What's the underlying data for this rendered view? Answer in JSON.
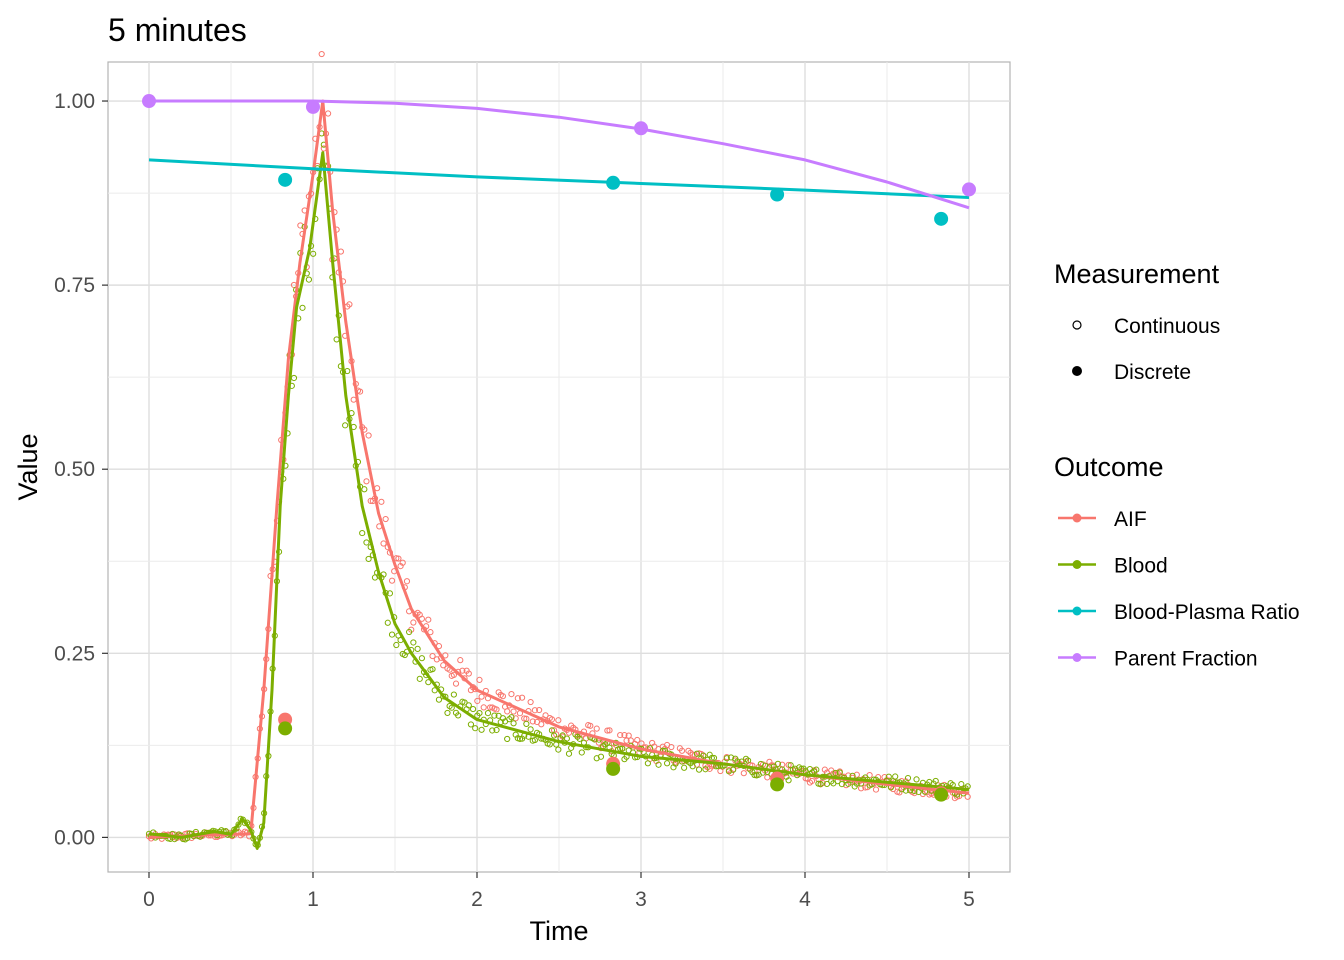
{
  "chart_data": {
    "type": "line",
    "title": "5 minutes",
    "xlabel": "Time",
    "ylabel": "Value",
    "xlim": [
      -0.25,
      5.25
    ],
    "ylim": [
      -0.047,
      1.053
    ],
    "x_ticks": [
      0,
      1,
      2,
      3,
      4,
      5
    ],
    "x_tick_labels": [
      "0",
      "1",
      "2",
      "3",
      "4",
      "5"
    ],
    "y_ticks": [
      0,
      0.25,
      0.5,
      0.75,
      1.0
    ],
    "y_tick_labels": [
      "0.00",
      "0.25",
      "0.50",
      "0.75",
      "1.00"
    ],
    "grid": true,
    "legend_position": "right",
    "legends": {
      "measurement": {
        "title": "Measurement",
        "items": [
          {
            "label": "Continuous",
            "shape": "open-circle"
          },
          {
            "label": "Discrete",
            "shape": "filled-circle"
          }
        ]
      },
      "outcome": {
        "title": "Outcome",
        "items": [
          {
            "label": "AIF",
            "color": "#F8766D"
          },
          {
            "label": "Blood",
            "color": "#7CAE00"
          },
          {
            "label": "Blood-Plasma Ratio",
            "color": "#00BFC4"
          },
          {
            "label": "Parent Fraction",
            "color": "#C77CFF"
          }
        ]
      }
    },
    "series": [
      {
        "name": "AIF",
        "color": "#F8766D",
        "fit": [
          [
            0,
            0
          ],
          [
            0.3,
            0.003
          ],
          [
            0.5,
            0.004
          ],
          [
            0.62,
            0.005
          ],
          [
            0.7,
            0.2
          ],
          [
            0.78,
            0.45
          ],
          [
            0.85,
            0.65
          ],
          [
            0.92,
            0.78
          ],
          [
            1.0,
            0.9
          ],
          [
            1.06,
            1.0
          ],
          [
            1.12,
            0.85
          ],
          [
            1.2,
            0.7
          ],
          [
            1.3,
            0.55
          ],
          [
            1.4,
            0.44
          ],
          [
            1.5,
            0.37
          ],
          [
            1.6,
            0.31
          ],
          [
            1.8,
            0.24
          ],
          [
            2.0,
            0.2
          ],
          [
            2.5,
            0.15
          ],
          [
            3.0,
            0.12
          ],
          [
            3.5,
            0.1
          ],
          [
            4.0,
            0.085
          ],
          [
            4.5,
            0.072
          ],
          [
            5.0,
            0.06
          ]
        ],
        "discrete": [
          [
            0.83,
            0.16
          ],
          [
            2.83,
            0.1
          ],
          [
            3.83,
            0.08
          ],
          [
            4.83,
            0.06
          ]
        ]
      },
      {
        "name": "Blood",
        "color": "#7CAE00",
        "fit": [
          [
            0,
            0.005
          ],
          [
            0.2,
            0.0
          ],
          [
            0.4,
            0.008
          ],
          [
            0.5,
            0.004
          ],
          [
            0.57,
            0.025
          ],
          [
            0.62,
            0.01
          ],
          [
            0.66,
            -0.015
          ],
          [
            0.7,
            0.02
          ],
          [
            0.75,
            0.2
          ],
          [
            0.8,
            0.45
          ],
          [
            0.85,
            0.6
          ],
          [
            0.9,
            0.72
          ],
          [
            0.98,
            0.8
          ],
          [
            1.06,
            0.93
          ],
          [
            1.12,
            0.78
          ],
          [
            1.2,
            0.6
          ],
          [
            1.3,
            0.45
          ],
          [
            1.4,
            0.36
          ],
          [
            1.5,
            0.29
          ],
          [
            1.6,
            0.25
          ],
          [
            1.8,
            0.19
          ],
          [
            2.0,
            0.16
          ],
          [
            2.5,
            0.13
          ],
          [
            3.0,
            0.11
          ],
          [
            3.5,
            0.1
          ],
          [
            4.0,
            0.085
          ],
          [
            4.5,
            0.075
          ],
          [
            5.0,
            0.065
          ]
        ],
        "discrete": [
          [
            0.83,
            0.148
          ],
          [
            2.83,
            0.093
          ],
          [
            3.83,
            0.072
          ],
          [
            4.83,
            0.058
          ]
        ]
      },
      {
        "name": "Blood-Plasma Ratio",
        "color": "#00BFC4",
        "fit": [
          [
            0,
            0.92
          ],
          [
            1,
            0.908
          ],
          [
            2,
            0.897
          ],
          [
            3,
            0.888
          ],
          [
            4,
            0.879
          ],
          [
            5,
            0.869
          ]
        ],
        "discrete": [
          [
            0.83,
            0.893
          ],
          [
            2.83,
            0.889
          ],
          [
            3.83,
            0.873
          ],
          [
            4.83,
            0.84
          ]
        ]
      },
      {
        "name": "Parent Fraction",
        "color": "#C77CFF",
        "fit": [
          [
            0,
            1.0
          ],
          [
            1,
            1.0
          ],
          [
            1.5,
            0.997
          ],
          [
            2,
            0.99
          ],
          [
            2.5,
            0.978
          ],
          [
            3,
            0.962
          ],
          [
            3.5,
            0.942
          ],
          [
            4,
            0.92
          ],
          [
            4.5,
            0.89
          ],
          [
            5,
            0.855
          ]
        ],
        "discrete": [
          [
            0,
            1.0
          ],
          [
            1,
            0.992
          ],
          [
            3,
            0.963
          ],
          [
            5,
            0.88
          ]
        ]
      }
    ]
  }
}
